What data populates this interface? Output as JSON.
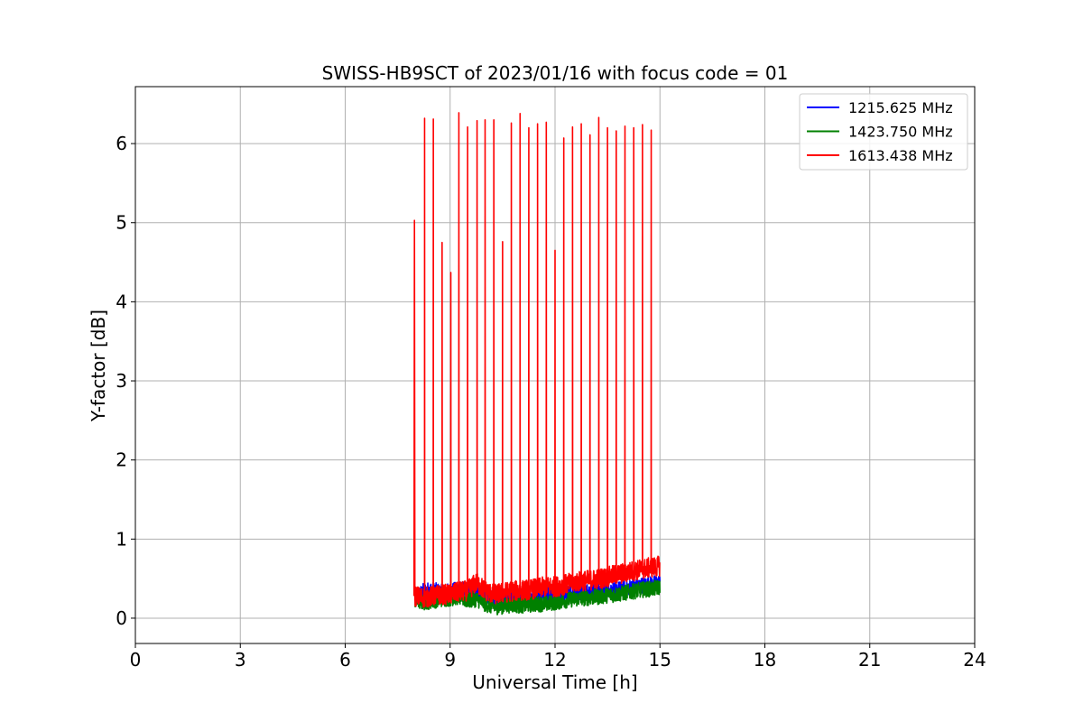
{
  "chart_data": {
    "type": "line",
    "title": "SWISS-HB9SCT of 2023/01/16 with focus code = 01",
    "xlabel": "Universal Time [h]",
    "ylabel": "Y-factor [dB]",
    "xlim": [
      0,
      24
    ],
    "ylim": [
      -0.32,
      6.72
    ],
    "xticks": [
      0,
      3,
      6,
      9,
      12,
      15,
      18,
      21,
      24
    ],
    "xtick_labels": [
      "0",
      "3",
      "6",
      "9",
      "12",
      "15",
      "18",
      "21",
      "24"
    ],
    "yticks": [
      0,
      1,
      2,
      3,
      4,
      5,
      6
    ],
    "ytick_labels": [
      "0",
      "1",
      "2",
      "3",
      "4",
      "5",
      "6"
    ],
    "grid": true,
    "legend_position": "top-right",
    "x_range_of_data": [
      8.0,
      15.0
    ],
    "series": [
      {
        "name": "1215.625 MHz",
        "color": "#0000ff",
        "x": [
          8.0,
          8.25,
          8.5,
          8.75,
          9.0,
          9.25,
          9.5,
          9.75,
          10.0,
          10.25,
          10.5,
          10.75,
          11.0,
          11.25,
          11.5,
          11.75,
          12.0,
          12.25,
          12.5,
          12.75,
          13.0,
          13.25,
          13.5,
          13.75,
          14.0,
          14.25,
          14.5,
          14.75,
          15.0
        ],
        "y": [
          0.25,
          0.35,
          0.36,
          0.33,
          0.34,
          0.37,
          0.35,
          0.36,
          0.28,
          0.24,
          0.26,
          0.25,
          0.26,
          0.27,
          0.3,
          0.32,
          0.28,
          0.3,
          0.32,
          0.33,
          0.35,
          0.35,
          0.37,
          0.36,
          0.38,
          0.4,
          0.42,
          0.43,
          0.45
        ]
      },
      {
        "name": "1423.750 MHz",
        "color": "#008000",
        "x": [
          8.0,
          8.25,
          8.5,
          8.75,
          9.0,
          9.25,
          9.5,
          9.75,
          10.0,
          10.25,
          10.5,
          10.75,
          11.0,
          11.25,
          11.5,
          11.75,
          12.0,
          12.25,
          12.5,
          12.75,
          13.0,
          13.25,
          13.5,
          13.75,
          14.0,
          14.25,
          14.5,
          14.75,
          15.0
        ],
        "y": [
          0.22,
          0.2,
          0.22,
          0.24,
          0.25,
          0.27,
          0.22,
          0.24,
          0.18,
          0.14,
          0.15,
          0.17,
          0.16,
          0.17,
          0.18,
          0.18,
          0.2,
          0.22,
          0.24,
          0.25,
          0.26,
          0.27,
          0.29,
          0.3,
          0.32,
          0.34,
          0.36,
          0.37,
          0.39
        ]
      },
      {
        "name": "1613.438 MHz",
        "color": "#ff0000",
        "x": [
          8.0,
          8.25,
          8.5,
          8.75,
          9.0,
          9.25,
          9.5,
          9.75,
          10.0,
          10.25,
          10.5,
          10.75,
          11.0,
          11.25,
          11.5,
          11.75,
          12.0,
          12.25,
          12.5,
          12.75,
          13.0,
          13.25,
          13.5,
          13.75,
          14.0,
          14.25,
          14.5,
          14.75,
          15.0
        ],
        "y": [
          0.28,
          0.26,
          0.28,
          0.3,
          0.3,
          0.33,
          0.35,
          0.45,
          0.35,
          0.3,
          0.32,
          0.34,
          0.35,
          0.36,
          0.38,
          0.4,
          0.4,
          0.42,
          0.45,
          0.47,
          0.48,
          0.5,
          0.52,
          0.55,
          0.57,
          0.6,
          0.62,
          0.64,
          0.66
        ],
        "spikes": {
          "x": [
            7.98,
            8.27,
            8.52,
            8.77,
            9.02,
            9.25,
            9.5,
            9.77,
            10.0,
            10.25,
            10.5,
            10.75,
            11.0,
            11.25,
            11.5,
            11.75,
            12.0,
            12.25,
            12.5,
            12.75,
            13.0,
            13.25,
            13.5,
            13.75,
            14.0,
            14.25,
            14.5,
            14.75
          ],
          "y": [
            5.03,
            6.32,
            6.31,
            4.75,
            4.37,
            6.39,
            6.21,
            6.29,
            6.3,
            6.3,
            4.76,
            6.26,
            6.38,
            6.2,
            6.25,
            6.27,
            4.65,
            6.07,
            6.21,
            6.25,
            6.11,
            6.33,
            6.2,
            6.16,
            6.22,
            6.2,
            6.24,
            6.17
          ]
        }
      }
    ]
  }
}
